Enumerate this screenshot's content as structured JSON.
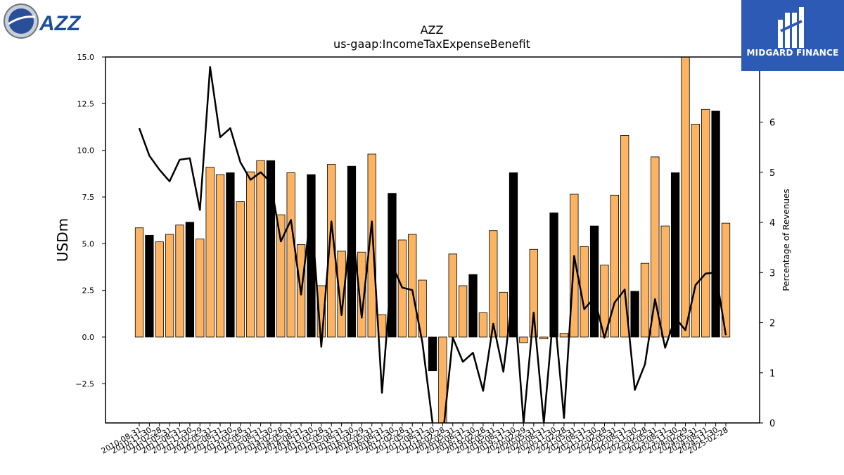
{
  "logos": {
    "left_text": "AZZ",
    "right_text": "MIDGARD FINANCE"
  },
  "chart_data": {
    "type": "bar",
    "title": "AZZ",
    "subtitle": "us-gaap:IncomeTaxExpenseBenefit",
    "ylabel": "USDm",
    "y2label": "Percentage of Revenues",
    "ylim": [
      -4.6,
      15.0
    ],
    "y2lim": [
      0,
      7.3
    ],
    "yticks": [
      "−2.5",
      "0.0",
      "2.5",
      "5.0",
      "7.5",
      "10.0",
      "12.5",
      "15.0"
    ],
    "y2ticks": [
      "0",
      "1",
      "2",
      "3",
      "4",
      "5",
      "6"
    ],
    "categories": [
      "2010-08-31",
      "2010-11-30",
      "2011-02-28",
      "2011-05-31",
      "2011-08-31",
      "2011-11-30",
      "2012-02-29",
      "2012-05-31",
      "2012-08-31",
      "2012-11-30",
      "2013-02-28",
      "2013-05-31",
      "2013-08-31",
      "2013-11-30",
      "2014-02-28",
      "2014-05-31",
      "2014-08-31",
      "2014-11-30",
      "2015-02-28",
      "2015-05-31",
      "2015-08-31",
      "2015-11-30",
      "2016-02-29",
      "2016-05-31",
      "2016-08-31",
      "2016-11-30",
      "2017-02-28",
      "2017-05-31",
      "2017-08-31",
      "2017-11-30",
      "2018-02-28",
      "2018-05-31",
      "2018-08-31",
      "2018-11-30",
      "2019-02-28",
      "2019-05-31",
      "2019-08-31",
      "2019-11-30",
      "2020-02-29",
      "2020-05-31",
      "2020-08-31",
      "2020-11-30",
      "2021-02-28",
      "2021-05-31",
      "2021-08-31",
      "2021-11-30",
      "2022-02-28",
      "2022-05-31",
      "2022-08-31",
      "2022-11-30",
      "2023-02-28",
      "2023-05-31",
      "2023-08-31",
      "2023-11-30",
      "2024-02-29",
      "2024-05-31",
      "2024-08-31",
      "2024-11-30",
      "2025-02-28"
    ],
    "series": [
      {
        "type": "bar",
        "values": [
          5.85,
          5.45,
          5.1,
          5.5,
          6.0,
          6.15,
          5.25,
          9.1,
          8.7,
          8.8,
          7.25,
          8.85,
          9.45,
          9.45,
          6.55,
          8.8,
          4.95,
          8.7,
          2.75,
          9.25,
          4.6,
          9.15,
          4.55,
          9.8,
          1.2,
          7.7,
          5.2,
          5.5,
          3.05,
          -1.8,
          -4.7,
          4.45,
          2.75,
          3.35,
          1.3,
          5.7,
          2.4,
          8.8,
          -0.3,
          4.7,
          -0.1,
          6.65,
          0.2,
          7.65,
          4.85,
          5.95,
          3.85,
          7.6,
          10.8,
          2.45,
          3.95,
          9.65,
          5.95,
          8.8,
          15.0,
          11.4,
          12.2,
          12.1,
          6.1
        ],
        "colors": [
          "#fdb462",
          "#000000",
          "#fdb462",
          "#fdb462",
          "#fdb462",
          "#000000",
          "#fdb462",
          "#fdb462",
          "#fdb462",
          "#000000",
          "#fdb462",
          "#fdb462",
          "#fdb462",
          "#000000",
          "#fdb462",
          "#fdb462",
          "#fdb462",
          "#000000",
          "#fdb462",
          "#fdb462",
          "#fdb462",
          "#000000",
          "#fdb462",
          "#fdb462",
          "#fdb462",
          "#000000",
          "#fdb462",
          "#fdb462",
          "#fdb462",
          "#000000",
          "#fdb462",
          "#fdb462",
          "#fdb462",
          "#000000",
          "#fdb462",
          "#fdb462",
          "#fdb462",
          "#000000",
          "#fdb462",
          "#fdb462",
          "#fdb462",
          "#000000",
          "#fdb462",
          "#fdb462",
          "#fdb462",
          "#000000",
          "#fdb462",
          "#fdb462",
          "#fdb462",
          "#000000",
          "#fdb462",
          "#fdb462",
          "#fdb462",
          "#000000",
          "#fdb462",
          "#fdb462",
          "#fdb462",
          "#000000",
          "#fdb462"
        ]
      },
      {
        "type": "line",
        "axis": "right",
        "values": [
          5.88,
          5.33,
          5.05,
          4.82,
          5.25,
          5.28,
          4.25,
          7.1,
          5.7,
          5.88,
          5.2,
          4.85,
          5.0,
          4.8,
          3.62,
          4.05,
          2.56,
          4.25,
          1.52,
          4.02,
          2.15,
          4.05,
          2.1,
          4.02,
          0.6,
          3.15,
          2.7,
          2.65,
          1.6,
          0.0,
          -0.3,
          1.7,
          1.22,
          1.4,
          0.64,
          1.98,
          1.02,
          2.7,
          0.0,
          2.2,
          0.0,
          2.3,
          0.1,
          3.33,
          2.27,
          2.5,
          1.7,
          2.4,
          2.66,
          0.66,
          1.17,
          2.47,
          1.5,
          2.1,
          1.85,
          2.75,
          2.98,
          3.0,
          1.75
        ]
      }
    ],
    "colors": {
      "bar_light": "#fdb462",
      "bar_dark": "#000000",
      "line": "#000000"
    },
    "grid": false,
    "legend": "none"
  }
}
